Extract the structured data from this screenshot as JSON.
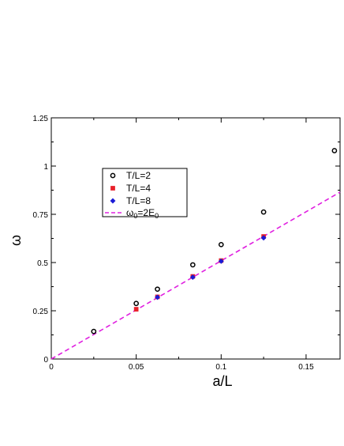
{
  "chart_data": {
    "type": "scatter",
    "xlabel": "a/L",
    "ylabel": "ω",
    "xlim": [
      0,
      0.17
    ],
    "ylim": [
      0,
      1.25
    ],
    "x_ticks": [
      "0",
      "0.05",
      "0.1",
      "0.15"
    ],
    "x_tick_values": [
      0,
      0.05,
      0.1,
      0.15
    ],
    "y_ticks": [
      "0",
      "0.25",
      "0.5",
      "0.75",
      "1",
      "1.25"
    ],
    "y_tick_values": [
      0,
      0.25,
      0.5,
      0.75,
      1,
      1.25
    ],
    "grid": false,
    "legend_position": "upper-left",
    "series": [
      {
        "name": "T/L=2",
        "marker": "open-circle",
        "color": "#000000",
        "x": [
          0.025,
          0.05,
          0.0625,
          0.0833,
          0.1,
          0.125,
          0.1667
        ],
        "y": [
          0.143,
          0.288,
          0.362,
          0.488,
          0.593,
          0.762,
          1.08
        ]
      },
      {
        "name": "T/L=4",
        "marker": "square",
        "color": "#e8202a",
        "x": [
          0.05,
          0.0625,
          0.0833,
          0.1,
          0.125
        ],
        "y": [
          0.258,
          0.322,
          0.428,
          0.51,
          0.635
        ]
      },
      {
        "name": "T/L=8",
        "marker": "diamond",
        "color": "#1a1ad6",
        "x": [
          0.0625,
          0.0833,
          0.1,
          0.125
        ],
        "y": [
          0.32,
          0.424,
          0.507,
          0.628
        ]
      }
    ],
    "fit_line": {
      "name_main": "ω",
      "name_sub1": "0",
      "name_mid": "=2E",
      "name_sub2": "0",
      "style": "dashed",
      "color": "#e020e0",
      "x": [
        0,
        0.17
      ],
      "y": [
        0,
        0.865
      ]
    }
  }
}
